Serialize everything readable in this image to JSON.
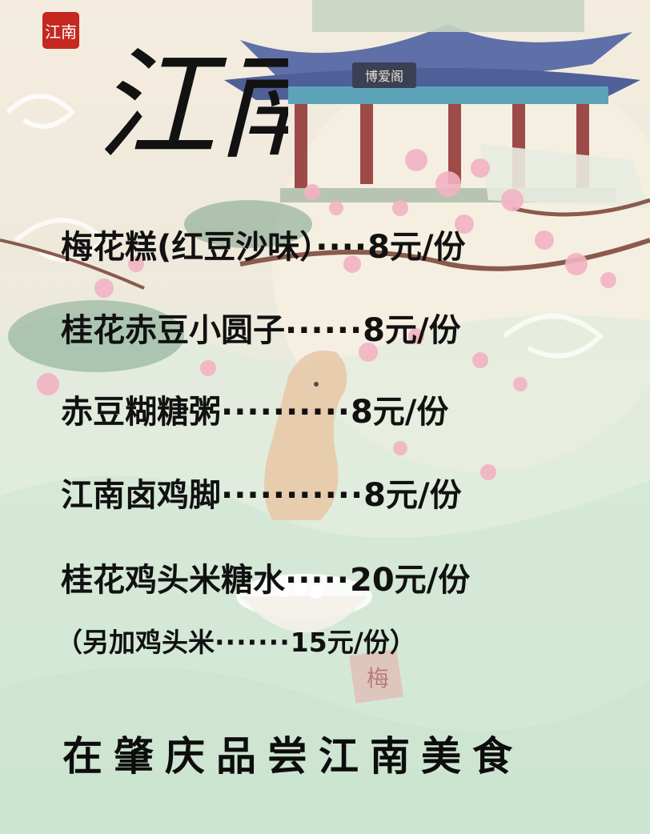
{
  "seal": {
    "text": "江南"
  },
  "title": "江南",
  "pavilion_sign": "博爱阁",
  "plum_label": "梅",
  "menu": {
    "items": [
      {
        "name": "梅花糕(红豆沙味）",
        "dots": "····",
        "price": "8元/份"
      },
      {
        "name": "桂花赤豆小圆子",
        "dots": "······",
        "price": "8元/份"
      },
      {
        "name": "赤豆糊糖粥",
        "dots": "··········",
        "price": "8元/份"
      },
      {
        "name": "江南卤鸡脚",
        "dots": "···········",
        "price": "8元/份"
      },
      {
        "name": "桂花鸡头米糖水",
        "dots": "·····",
        "price": "20元/份"
      }
    ],
    "extra": {
      "open": "（",
      "name": "另加鸡头米",
      "dots": "·······",
      "price": "15元/份",
      "close": "）"
    }
  },
  "slogan": "在肇庆品尝江南美食",
  "colors": {
    "text": "#111111",
    "seal_red": "#c4281f",
    "blossom": "#f2b3c3",
    "roof": "#5f6fa8",
    "mint": "#cfe6d4"
  }
}
